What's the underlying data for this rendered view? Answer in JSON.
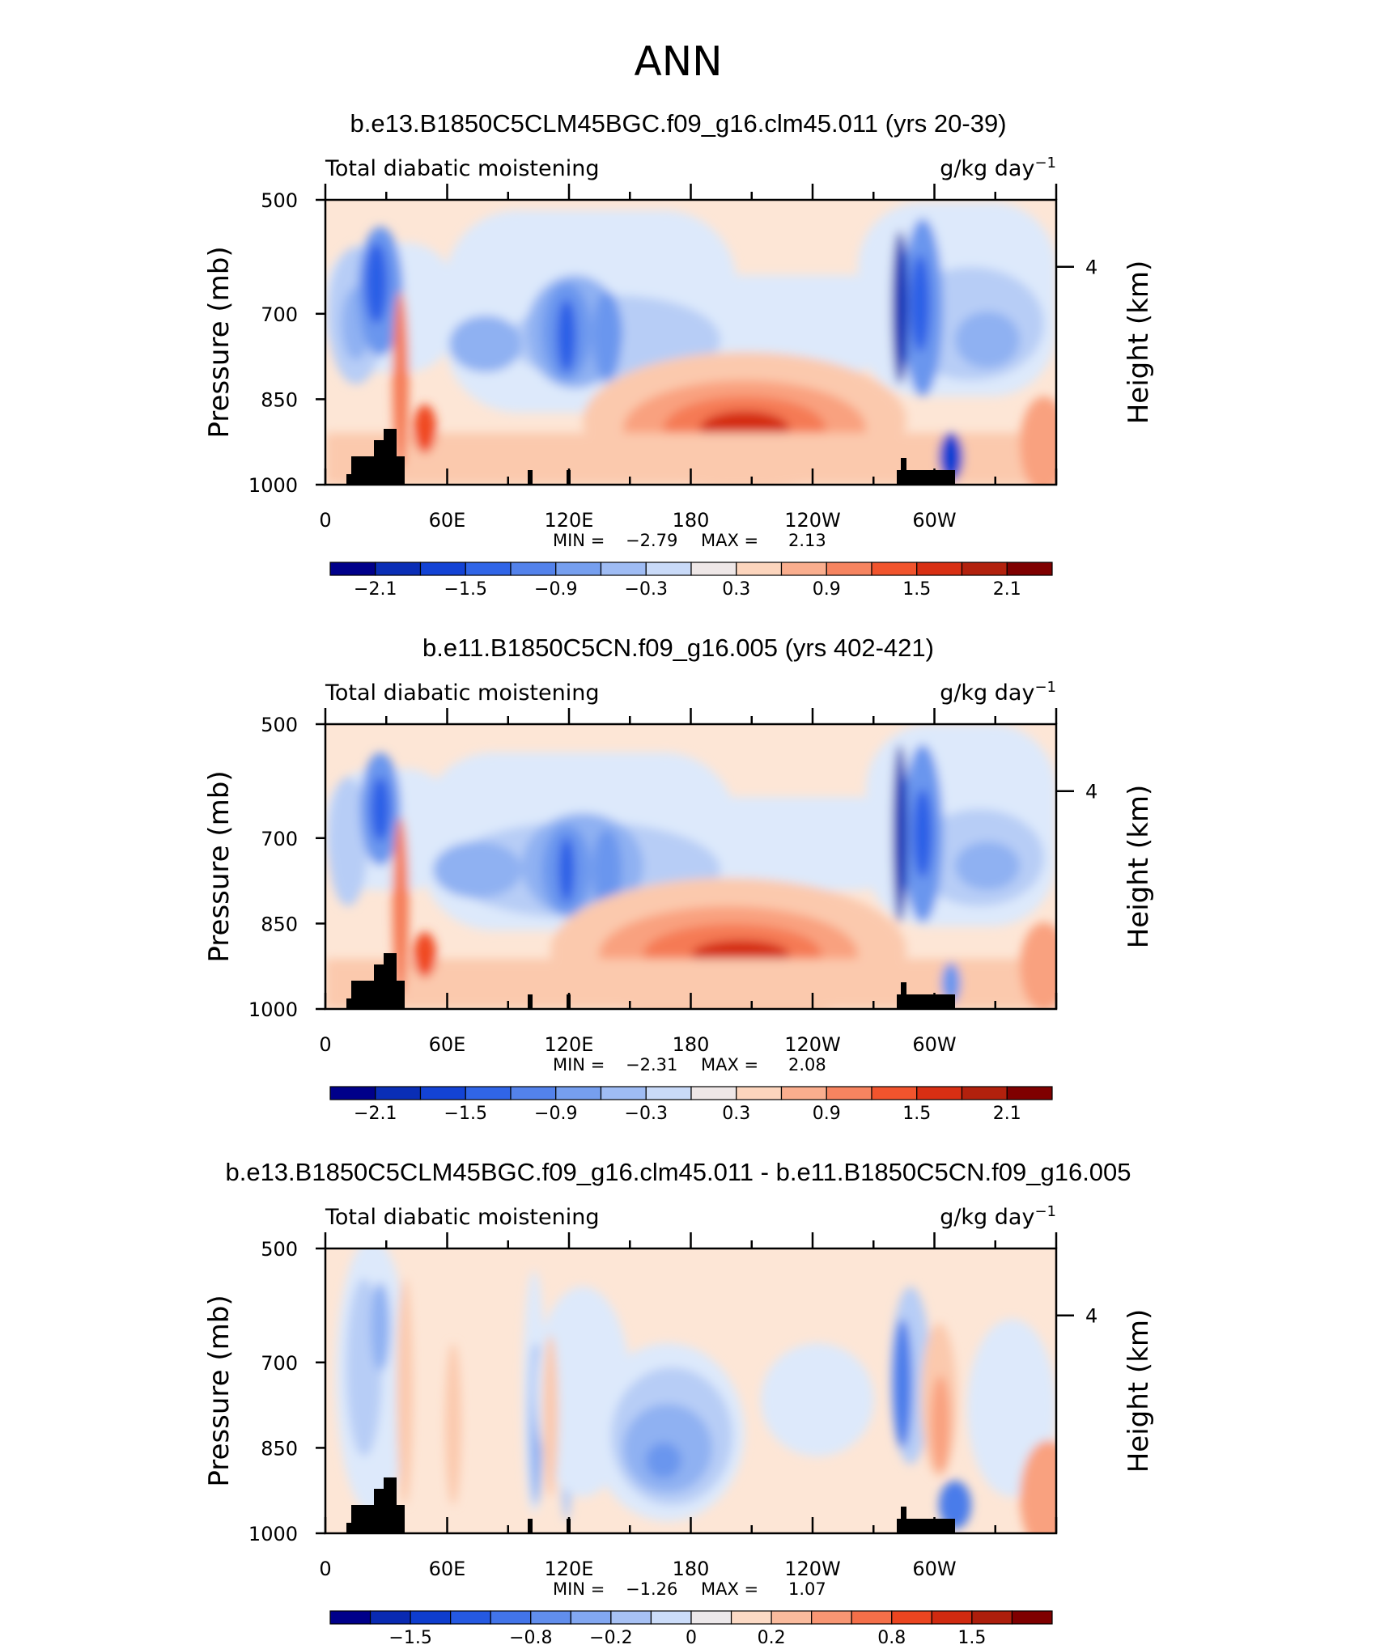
{
  "figure": {
    "title": "ANN"
  },
  "chart_data": [
    {
      "type": "heatmap",
      "title": "b.e13.B1850C5CLM45BGC.f09_g16.clm45.011 (yrs 20-39)",
      "left_string": "Total diabatic moistening",
      "right_string": "g/kg day",
      "right_string_exp": "−1",
      "ylabel": "Pressure (mb)",
      "y2label": "Height (km)",
      "yticks": [
        "500",
        "700",
        "850",
        "1000"
      ],
      "y2ticks": [
        "4"
      ],
      "xticks": [
        "0",
        "60E",
        "120E",
        "180",
        "120W",
        "60W"
      ],
      "min_label": "MIN =",
      "min_value": "−2.79",
      "max_label": "MAX =",
      "max_value": "2.13",
      "colorbar_labels": [
        "−2.1",
        "−1.5",
        "−0.9",
        "−0.3",
        "0.3",
        "0.9",
        "1.5",
        "2.1"
      ],
      "colorbar_levels": [
        -2.4,
        -2.1,
        -1.8,
        -1.5,
        -1.2,
        -0.9,
        -0.6,
        -0.3,
        0,
        0.3,
        0.6,
        0.9,
        1.2,
        1.5,
        1.8,
        2.1,
        2.4
      ]
    },
    {
      "type": "heatmap",
      "title": "b.e11.B1850C5CN.f09_g16.005 (yrs 402-421)",
      "left_string": "Total diabatic moistening",
      "right_string": "g/kg day",
      "right_string_exp": "−1",
      "ylabel": "Pressure (mb)",
      "y2label": "Height (km)",
      "yticks": [
        "500",
        "700",
        "850",
        "1000"
      ],
      "y2ticks": [
        "4"
      ],
      "xticks": [
        "0",
        "60E",
        "120E",
        "180",
        "120W",
        "60W"
      ],
      "min_label": "MIN =",
      "min_value": "−2.31",
      "max_label": "MAX =",
      "max_value": "2.08",
      "colorbar_labels": [
        "−2.1",
        "−1.5",
        "−0.9",
        "−0.3",
        "0.3",
        "0.9",
        "1.5",
        "2.1"
      ],
      "colorbar_levels": [
        -2.4,
        -2.1,
        -1.8,
        -1.5,
        -1.2,
        -0.9,
        -0.6,
        -0.3,
        0,
        0.3,
        0.6,
        0.9,
        1.2,
        1.5,
        1.8,
        2.1,
        2.4
      ]
    },
    {
      "type": "heatmap",
      "title": "b.e13.B1850C5CLM45BGC.f09_g16.clm45.011 - b.e11.B1850C5CN.f09_g16.005",
      "left_string": "Total diabatic moistening",
      "right_string": "g/kg day",
      "right_string_exp": "−1",
      "ylabel": "Pressure (mb)",
      "y2label": "Height (km)",
      "yticks": [
        "500",
        "700",
        "850",
        "1000"
      ],
      "y2ticks": [
        "4"
      ],
      "xticks": [
        "0",
        "60E",
        "120E",
        "180",
        "120W",
        "60W"
      ],
      "min_label": "MIN =",
      "min_value": "−1.26",
      "max_label": "MAX =",
      "max_value": "1.07",
      "colorbar_labels": [
        "−1.5",
        "−0.8",
        "−0.2",
        "0",
        "0.2",
        "0.8",
        "1.5"
      ],
      "colorbar_levels": [
        -2.0,
        -1.8,
        -1.5,
        -1.2,
        -1.0,
        -0.8,
        -0.6,
        -0.4,
        -0.2,
        0,
        0.2,
        0.4,
        0.6,
        0.8,
        1.0,
        1.2,
        1.5,
        1.8,
        2.0
      ]
    }
  ],
  "palette": [
    "#00008a",
    "#0a2db4",
    "#0f3fd2",
    "#2a5fe6",
    "#4a7bea",
    "#6a96ee",
    "#8fb1f2",
    "#b7cdf6",
    "#dde9fb",
    "#fde6d6",
    "#fbc9ad",
    "#f9a17f",
    "#f57a55",
    "#f04a23",
    "#d42b10",
    "#b0200d",
    "#7f0000"
  ],
  "colors": {
    "topography": "#000000",
    "axes": "#000000"
  }
}
